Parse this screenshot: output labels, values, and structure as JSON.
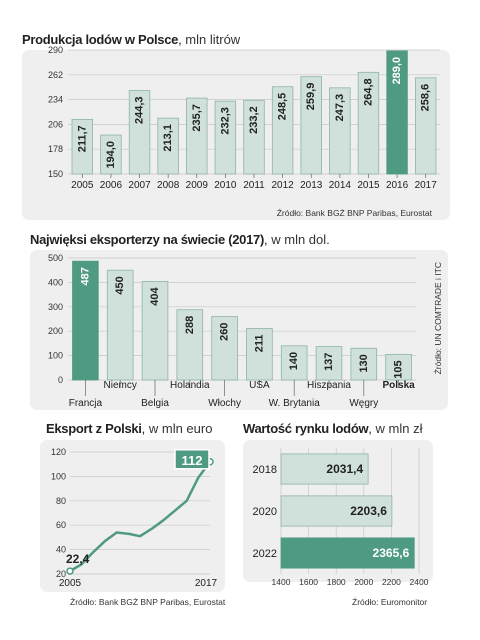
{
  "colors": {
    "bar": "#cfe1da",
    "barStroke": "#8fb4a6",
    "highlight": "#4f9a82",
    "line": "#4f9a82",
    "panel": "#eeefee",
    "grid": "#c8c8c8"
  },
  "chart_data": [
    {
      "type": "bar",
      "title": "Produkcja lodów w Polsce",
      "unit": "mln litrów",
      "source": "Źródło: Bank BGŻ BNP Paribas, Eurostat",
      "categories": [
        "2005",
        "2006",
        "2007",
        "2008",
        "2009",
        "2010",
        "2011",
        "2012",
        "2013",
        "2014",
        "2015",
        "2016",
        "2017"
      ],
      "values": [
        211.7,
        194.0,
        244.3,
        213.1,
        235.7,
        232.3,
        233.2,
        248.5,
        259.9,
        247.3,
        264.8,
        289.0,
        258.6
      ],
      "labels": [
        "211,7",
        "194,0",
        "244,3",
        "213,1",
        "235,7",
        "232,3",
        "233,2",
        "248,5",
        "259,9",
        "247,3",
        "264,8",
        "289,0",
        "258,6"
      ],
      "highlight_index": 11,
      "yticks": [
        150,
        178,
        206,
        234,
        262,
        290
      ],
      "ylim": [
        150,
        290
      ],
      "grid": true
    },
    {
      "type": "bar",
      "title": "Najwięksi eksporterzy na świecie (2017)",
      "unit": "w mln dol.",
      "source": "Źródło: UN COMTRADE i ITC",
      "categories": [
        "Francja",
        "Niemcy",
        "Belgia",
        "Holandia",
        "Włochy",
        "USA",
        "W. Brytania",
        "Hiszpania",
        "Węgry",
        "Polska"
      ],
      "values": [
        487,
        450,
        404,
        288,
        260,
        211,
        140,
        137,
        130,
        105
      ],
      "labels": [
        "487",
        "450",
        "404",
        "288",
        "260",
        "211",
        "140",
        "137",
        "130",
        "105"
      ],
      "highlight_index": 0,
      "bold_category_index": 9,
      "yticks": [
        0,
        100,
        200,
        300,
        400,
        500
      ],
      "ylim": [
        0,
        500
      ],
      "grid": true
    },
    {
      "type": "line",
      "title": "Eksport z Polski",
      "unit": "w mln euro",
      "source": "Źródło: Bank BGŻ BNP Paribas, Eurostat",
      "x": [
        2005,
        2006,
        2007,
        2008,
        2009,
        2010,
        2011,
        2012,
        2013,
        2014,
        2015,
        2016,
        2017
      ],
      "values": [
        22.4,
        28,
        38,
        47,
        54,
        53,
        51,
        57,
        64,
        72,
        80,
        99,
        112
      ],
      "xtick_labels": [
        "2005",
        "2017"
      ],
      "start_label": "22,4",
      "end_label": "112",
      "yticks": [
        20,
        40,
        60,
        80,
        100,
        120
      ],
      "ylim": [
        20,
        120
      ],
      "grid": true
    },
    {
      "type": "bar",
      "orientation": "horizontal",
      "title": "Wartość rynku lodów",
      "unit": "w mln zł",
      "source": "Źródło: Euromonitor",
      "categories": [
        "2018",
        "2020",
        "2022"
      ],
      "values": [
        2031.4,
        2203.6,
        2365.6
      ],
      "labels": [
        "2031,4",
        "2203,6",
        "2365,6"
      ],
      "highlight_index": 2,
      "xticks": [
        1400,
        1600,
        1800,
        2000,
        2200,
        2400
      ],
      "xlim": [
        1400,
        2400
      ],
      "grid": true
    }
  ]
}
